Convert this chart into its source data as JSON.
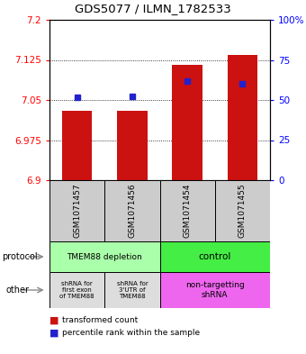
{
  "title": "GDS5077 / ILMN_1782533",
  "samples": [
    "GSM1071457",
    "GSM1071456",
    "GSM1071454",
    "GSM1071455"
  ],
  "bar_bottom": 6.9,
  "bar_tops": [
    7.03,
    7.03,
    7.115,
    7.135
  ],
  "percentile_values": [
    7.055,
    7.057,
    7.085,
    7.08
  ],
  "ylim": [
    6.9,
    7.2
  ],
  "yticks_left": [
    6.9,
    6.975,
    7.05,
    7.125,
    7.2
  ],
  "yticks_right": [
    0,
    25,
    50,
    75,
    100
  ],
  "bar_color": "#cc1111",
  "percentile_color": "#2222cc",
  "bar_width": 0.55,
  "legend_red_label": "transformed count",
  "legend_blue_label": "percentile rank within the sample",
  "sample_box_color": "#cccccc",
  "proto_depletion_color": "#aaffaa",
  "proto_control_color": "#44ee44",
  "other_gray_color": "#dddddd",
  "other_magenta_color": "#ee66ee"
}
